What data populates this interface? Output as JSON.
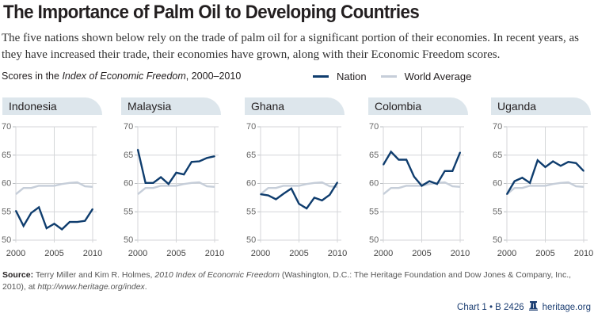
{
  "header": {
    "title": "The Importance of Palm Oil to Developing Countries",
    "subtitle": "The five nations shown below rely on the trade of palm oil for a significant portion of their economies. In recent years, as they have increased their trade, their economies have grown, along with their Economic Freedom scores."
  },
  "scores_label": {
    "prefix": "Scores in the ",
    "italic": "Index of Economic Freedom",
    "suffix": ", 2000–2010"
  },
  "legend": {
    "nation": "Nation",
    "world": "World Average"
  },
  "colors": {
    "nation": "#0f3d6e",
    "world": "#c6ced9",
    "grid": "#d4d6d8",
    "tab": "#dde6ec",
    "credit": "#1d3f73"
  },
  "chart_data": {
    "type": "line",
    "title": "Scores in the Index of Economic Freedom, 2000–2010",
    "x": [
      2000,
      2001,
      2002,
      2003,
      2004,
      2005,
      2006,
      2007,
      2008,
      2009,
      2010
    ],
    "x_ticks": [
      "2000",
      "2005",
      "2010"
    ],
    "y_ticks": [
      "70",
      "65",
      "60",
      "55",
      "50"
    ],
    "ylim": [
      50,
      70
    ],
    "grid": true,
    "legend_position": "top-right",
    "world_average": [
      58.1,
      59.2,
      59.2,
      59.6,
      59.6,
      59.6,
      59.9,
      60.1,
      60.2,
      59.5,
      59.4
    ],
    "panels": [
      {
        "name": "Indonesia",
        "values": [
          55.2,
          52.5,
          54.8,
          55.8,
          52.1,
          52.9,
          51.9,
          53.2,
          53.2,
          53.4,
          55.5
        ]
      },
      {
        "name": "Malaysia",
        "values": [
          66.0,
          60.1,
          60.1,
          61.1,
          59.9,
          61.9,
          61.6,
          63.8,
          63.9,
          64.5,
          64.8
        ]
      },
      {
        "name": "Ghana",
        "values": [
          58.1,
          57.9,
          57.2,
          58.2,
          59.1,
          56.4,
          55.6,
          57.5,
          57.0,
          58.0,
          60.2
        ]
      },
      {
        "name": "Colombia",
        "values": [
          63.3,
          65.6,
          64.2,
          64.2,
          61.2,
          59.6,
          60.4,
          59.9,
          62.2,
          62.2,
          65.5
        ]
      },
      {
        "name": "Uganda",
        "values": [
          58.1,
          60.4,
          61.0,
          60.1,
          64.1,
          62.9,
          63.9,
          63.1,
          63.8,
          63.6,
          62.2
        ]
      }
    ]
  },
  "source": {
    "label": "Source:",
    "text1": " Terry Miller and Kim R. Holmes, ",
    "italic1": "2010 Index of Economic Freedom",
    "text2": " (Washington, D.C.: The Heritage Foundation and Dow Jones & Company, Inc., 2010), at ",
    "italic2": "http://www.heritage.org/index",
    "text3": "."
  },
  "credit": {
    "chart_id": "Chart 1 • B 2426",
    "site": "heritage.org",
    "icon": "liberty-bell-icon"
  }
}
